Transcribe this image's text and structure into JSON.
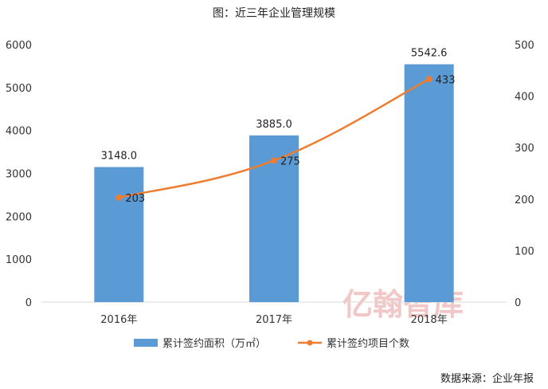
{
  "title": "图：近三年企业管理规模",
  "source": "数据来源：企业年报",
  "watermark": "亿翰智库",
  "chart_data": {
    "type": "bar",
    "categories": [
      "2016年",
      "2017年",
      "2018年"
    ],
    "series": [
      {
        "name": "累计签约面积（万㎡）",
        "type": "bar",
        "axis": "left",
        "values": [
          3148.0,
          3885.0,
          5542.6
        ],
        "labels": [
          "3148.0",
          "3885.0",
          "5542.6"
        ],
        "color": "#5b9bd5"
      },
      {
        "name": "累计签约项目个数",
        "type": "line",
        "axis": "right",
        "values": [
          203,
          275,
          433
        ],
        "labels": [
          "203",
          "275",
          "433"
        ],
        "color": "#ed7d31"
      }
    ],
    "y_left": {
      "min": 0,
      "max": 6000,
      "ticks": [
        0,
        1000,
        2000,
        3000,
        4000,
        5000,
        6000
      ]
    },
    "y_right": {
      "min": 0,
      "max": 500,
      "ticks": [
        0,
        100,
        200,
        300,
        400,
        500
      ]
    },
    "legend_position": "bottom",
    "grid": false
  }
}
